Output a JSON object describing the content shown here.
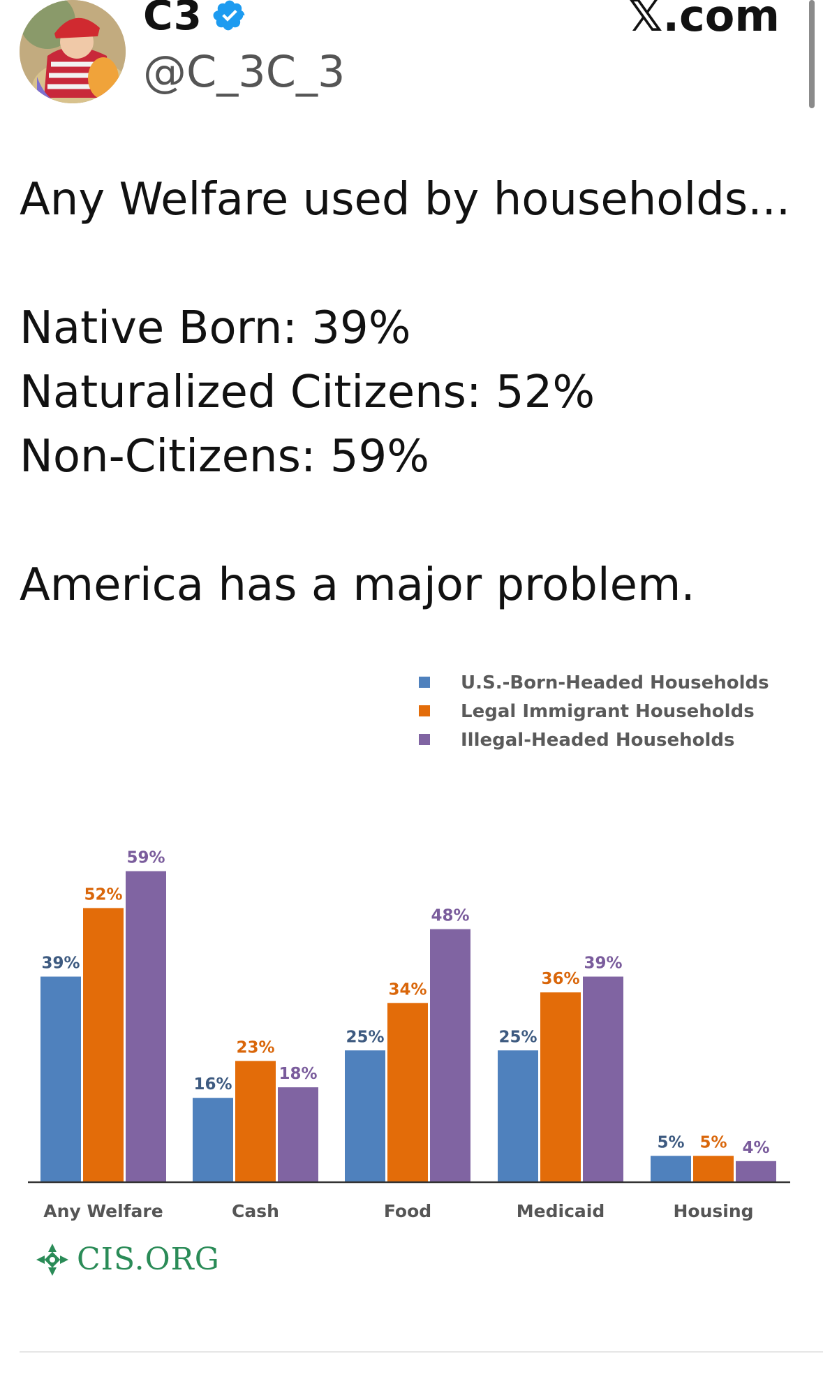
{
  "header": {
    "display_name": "C3",
    "handle": "@C_3C_3",
    "site": "𝕏.com"
  },
  "icons": {
    "verified": "verified-badge-icon",
    "avatar": "avatar-image",
    "logo": "cis-logo-icon"
  },
  "tweet": {
    "lines": [
      "Any Welfare used by households...",
      "",
      "Native Born: 39%",
      "Naturalized Citizens: 52%",
      "Non-Citizens: 59%",
      "",
      "America has a major problem."
    ]
  },
  "chart_data": {
    "type": "bar",
    "categories": [
      "Any Welfare",
      "Cash",
      "Food",
      "Medicaid",
      "Housing"
    ],
    "series": [
      {
        "name": "U.S.-Born-Headed Households",
        "color": "#4f81bd",
        "labelColor": "#3d5a80",
        "values": [
          39,
          16,
          25,
          25,
          5
        ]
      },
      {
        "name": "Legal Immigrant Households",
        "color": "#e36c09",
        "labelColor": "#d9660a",
        "values": [
          52,
          23,
          34,
          36,
          5
        ]
      },
      {
        "name": "Illegal-Headed Households",
        "color": "#8064a2",
        "labelColor": "#7a5c9c",
        "values": [
          59,
          18,
          48,
          39,
          4
        ]
      }
    ],
    "value_suffix": "%",
    "ylim": [
      0,
      60
    ],
    "legend_position": "top-right"
  },
  "footer": {
    "logo_text": "CIS.ORG"
  },
  "colors": {
    "verified": "#1d9bf0",
    "logo": "#2a8b57"
  }
}
